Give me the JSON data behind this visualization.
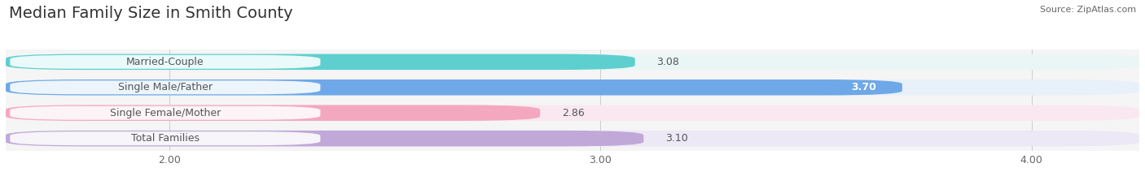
{
  "title": "Median Family Size in Smith County",
  "source": "Source: ZipAtlas.com",
  "categories": [
    "Married-Couple",
    "Single Male/Father",
    "Single Female/Mother",
    "Total Families"
  ],
  "values": [
    3.08,
    3.7,
    2.86,
    3.1
  ],
  "bar_colors": [
    "#5ecfcf",
    "#6ea8e8",
    "#f4a8c0",
    "#c0a8d8"
  ],
  "bar_bg_colors": [
    "#eaf6f6",
    "#e8f0fa",
    "#fae8f0",
    "#ede8f5"
  ],
  "value_inside": [
    false,
    true,
    false,
    false
  ],
  "value_colors_inside": [
    "#444444",
    "#ffffff",
    "#444444",
    "#444444"
  ],
  "xlim": [
    1.62,
    4.25
  ],
  "xticks": [
    2.0,
    3.0,
    4.0
  ],
  "xtick_labels": [
    "2.00",
    "3.00",
    "4.00"
  ],
  "background_color": "#ffffff",
  "plot_bg_color": "#f5f5f5",
  "bar_height": 0.62,
  "title_fontsize": 14,
  "tick_fontsize": 9,
  "label_fontsize": 9,
  "value_fontsize": 9
}
